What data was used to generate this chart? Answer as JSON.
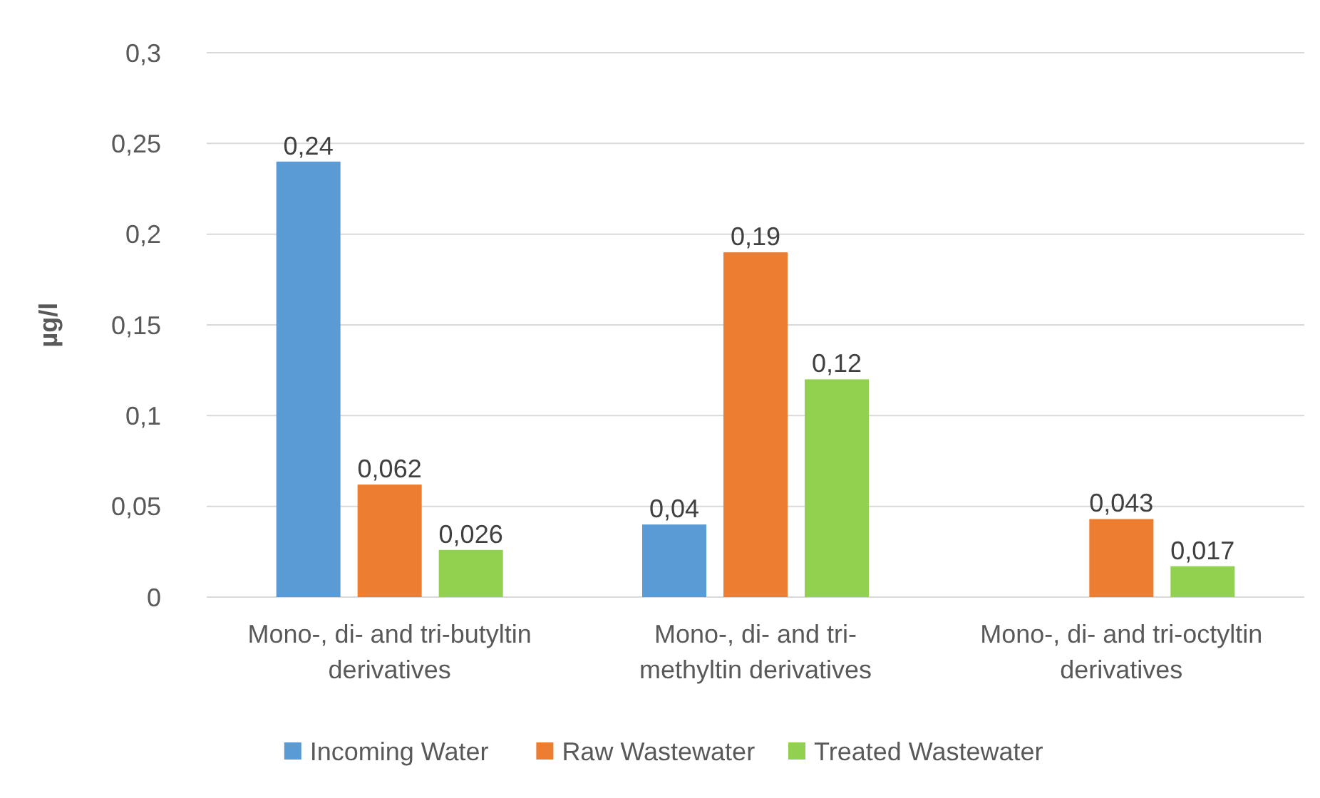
{
  "chart_data": {
    "type": "bar",
    "ylabel": "µg/l",
    "categories": [
      "Mono-, di- and tri-butyltin derivatives",
      "Mono-, di- and tri-methyltin derivatives",
      "Mono-, di- and tri-octyltin derivatives"
    ],
    "series": [
      {
        "name": "Incoming Water",
        "color": "#5b9bd5",
        "values": [
          0.24,
          0.04,
          null
        ],
        "value_labels": [
          "0,24",
          "0,04",
          null
        ]
      },
      {
        "name": "Raw Wastewater",
        "color": "#ed7d31",
        "values": [
          0.062,
          0.19,
          0.043
        ],
        "value_labels": [
          "0,062",
          "0,19",
          "0,043"
        ]
      },
      {
        "name": "Treated Wastewater",
        "color": "#92d050",
        "values": [
          0.026,
          0.12,
          0.017
        ],
        "value_labels": [
          "0,026",
          "0,12",
          "0,017"
        ]
      }
    ],
    "ylim": [
      0,
      0.3
    ],
    "yticks": [
      {
        "value": 0,
        "label": "0"
      },
      {
        "value": 0.05,
        "label": "0,05"
      },
      {
        "value": 0.1,
        "label": "0,1"
      },
      {
        "value": 0.15,
        "label": "0,15"
      },
      {
        "value": 0.2,
        "label": "0,2"
      },
      {
        "value": 0.25,
        "label": "0,25"
      },
      {
        "value": 0.3,
        "label": "0,3"
      }
    ],
    "grid": "y",
    "legend": "bottom"
  }
}
